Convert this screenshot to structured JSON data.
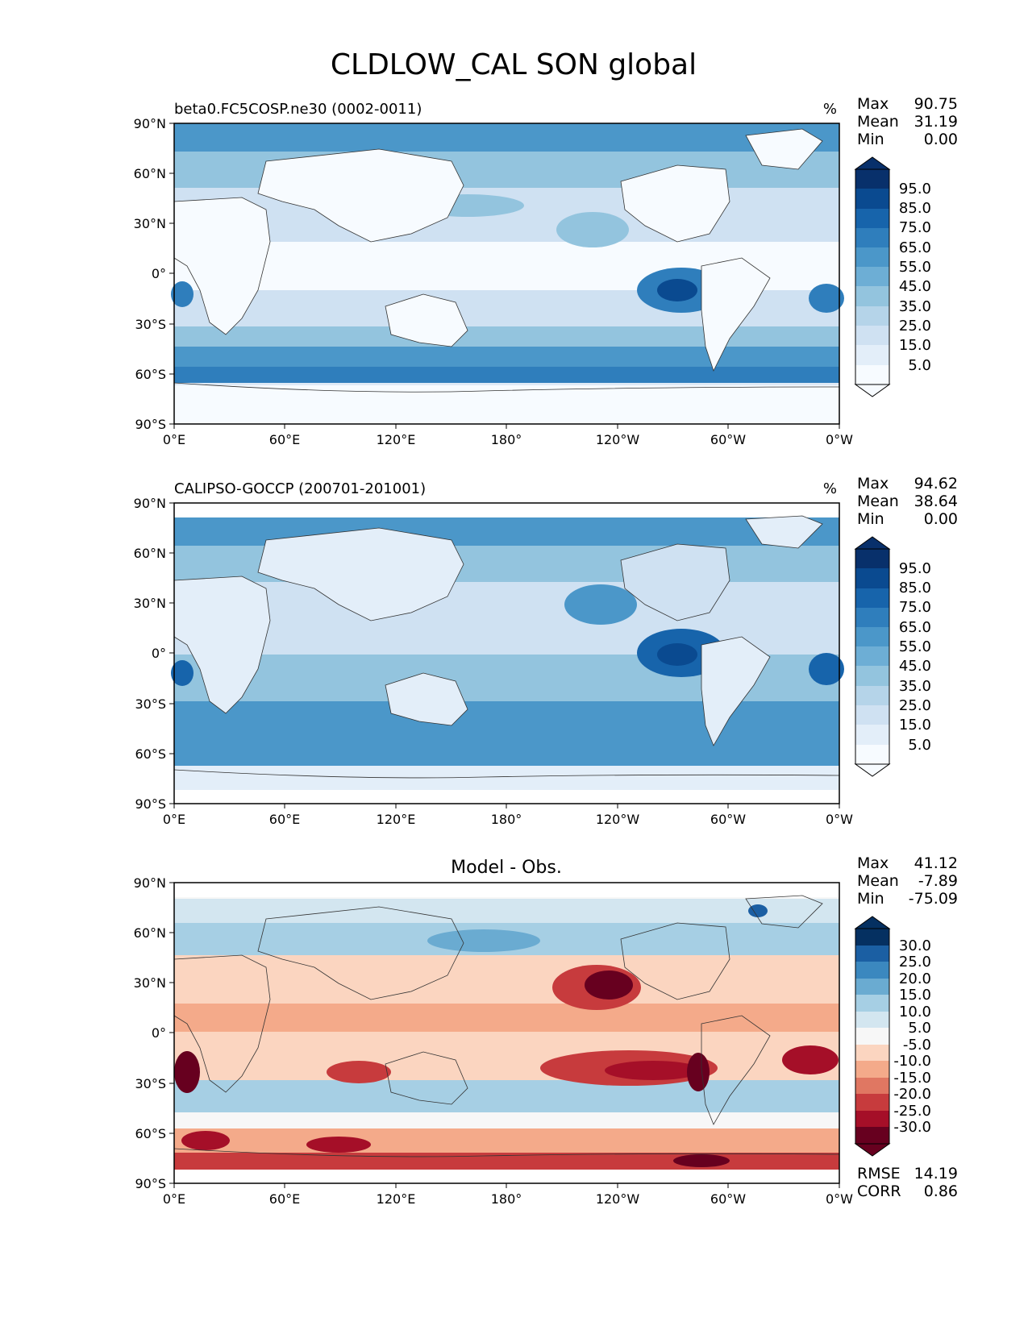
{
  "title": "CLDLOW_CAL SON global",
  "x_ticks": [
    "0°E",
    "60°E",
    "120°E",
    "180°",
    "120°W",
    "60°W",
    "0°W"
  ],
  "y_ticks": [
    "90°N",
    "60°N",
    "30°N",
    "0°",
    "30°S",
    "60°S",
    "90°S"
  ],
  "stat_labels": {
    "max": "Max",
    "mean": "Mean",
    "min": "Min",
    "rmse": "RMSE",
    "corr": "CORR"
  },
  "colors": {
    "blues": [
      "#f7fbff",
      "#e3eef9",
      "#cfe1f2",
      "#b5d4e9",
      "#93c4de",
      "#6daed5",
      "#4b97c9",
      "#2f7ebc",
      "#1764ab",
      "#0a4a90",
      "#08306b"
    ],
    "diverging": [
      "#67001f",
      "#a50f28",
      "#c73b3d",
      "#e07762",
      "#f4aa8a",
      "#fbd5c0",
      "#f7f7f7",
      "#d3e6f0",
      "#a6cfe4",
      "#6aabd1",
      "#3b88bf",
      "#1b5fa3",
      "#053061"
    ]
  },
  "panels": [
    {
      "left_title": "beta0.FC5COSP.ne30 (0002-0011)",
      "units": "%",
      "center_title": "",
      "stats": {
        "max": "90.75",
        "mean": "31.19",
        "min": "0.00"
      },
      "colorbar_labels": [
        "95.0",
        "85.0",
        "75.0",
        "65.0",
        "55.0",
        "45.0",
        "35.0",
        "25.0",
        "15.0",
        "5.0"
      ],
      "lat_coverage": [
        -90,
        90
      ]
    },
    {
      "left_title": "CALIPSO-GOCCP (200701-201001)",
      "units": "%",
      "center_title": "",
      "stats": {
        "max": "94.62",
        "mean": "38.64",
        "min": "0.00"
      },
      "colorbar_labels": [
        "95.0",
        "85.0",
        "75.0",
        "65.0",
        "55.0",
        "45.0",
        "35.0",
        "25.0",
        "15.0",
        "5.0"
      ],
      "lat_coverage": [
        -82,
        82
      ]
    },
    {
      "left_title": "",
      "units": "",
      "center_title": "Model - Obs.",
      "stats": {
        "max": "41.12",
        "mean": "-7.89",
        "min": "-75.09"
      },
      "colorbar_labels": [
        "30.0",
        "25.0",
        "20.0",
        "15.0",
        "10.0",
        "5.0",
        "-5.0",
        "-10.0",
        "-15.0",
        "-20.0",
        "-25.0",
        "-30.0"
      ],
      "lat_coverage": [
        -82,
        82
      ],
      "rmse": "14.19",
      "corr": "0.86"
    }
  ]
}
